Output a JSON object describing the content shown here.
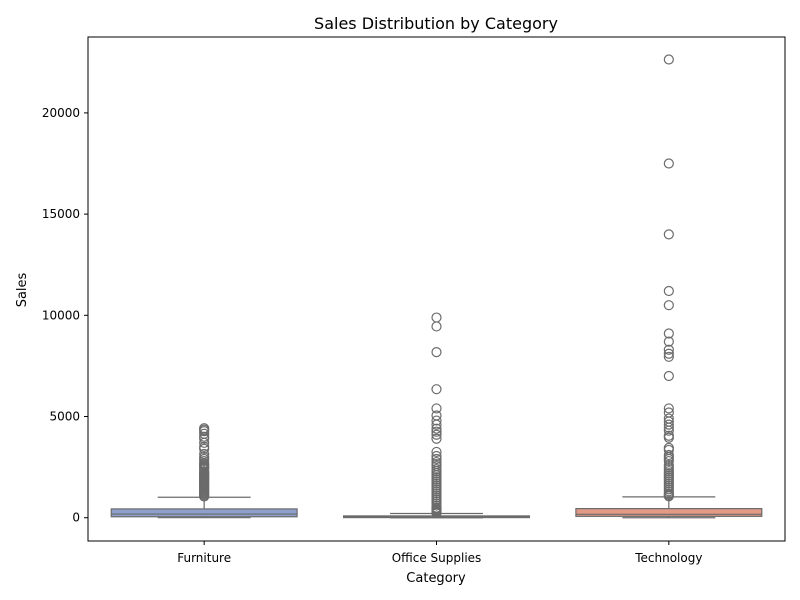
{
  "chart_data": {
    "type": "box",
    "title": "Sales Distribution by Category",
    "xlabel": "Category",
    "ylabel": "Sales",
    "ylim": [
      -1150,
      23750
    ],
    "yticks": [
      0,
      5000,
      10000,
      15000,
      20000
    ],
    "ytick_labels": [
      "0",
      "5000",
      "10000",
      "15000",
      "20000"
    ],
    "grid": false,
    "categories": [
      "Furniture",
      "Office Supplies",
      "Technology"
    ],
    "boxes": [
      {
        "category": "Furniture",
        "color": "#8da0cb",
        "min": 1,
        "q1": 47,
        "median": 182,
        "q3": 435,
        "whisker_low": 1,
        "whisker_high": 1010,
        "outliers": [
          4420,
          4350,
          4280,
          4150,
          4000,
          3900,
          3700,
          3500,
          3400,
          3150,
          3000,
          2900,
          2800,
          2700,
          2650,
          2600,
          2550,
          2500,
          2450,
          2400,
          2300,
          2250,
          2200,
          2150,
          2100,
          2050,
          2000,
          1950,
          1900,
          1850,
          1800,
          1750,
          1700,
          1650,
          1600,
          1550,
          1500,
          1450,
          1400,
          1350,
          1300,
          1250,
          1200,
          1150,
          1100,
          1050
        ]
      },
      {
        "category": "Office Supplies",
        "color": "#8c8c8c",
        "min": 0,
        "q1": 7,
        "median": 28,
        "q3": 90,
        "whisker_low": 0,
        "whisker_high": 210,
        "outliers": [
          9890,
          9450,
          8180,
          6350,
          5400,
          5050,
          4800,
          4600,
          4400,
          4250,
          4100,
          3900,
          3250,
          3050,
          2900,
          2750,
          2650,
          2550,
          2400,
          2300,
          2200,
          2100,
          2000,
          1900,
          1800,
          1700,
          1600,
          1500,
          1400,
          1300,
          1200,
          1100,
          1000,
          900,
          800,
          700,
          600,
          500,
          450,
          400,
          350,
          300,
          260,
          230
        ]
      },
      {
        "category": "Technology",
        "color": "#e29a86",
        "min": 0,
        "q1": 68,
        "median": 168,
        "q3": 450,
        "whisker_low": 0,
        "whisker_high": 1030,
        "outliers": [
          22640,
          17500,
          14000,
          11200,
          10500,
          9100,
          8700,
          8300,
          8100,
          7950,
          7000,
          5400,
          5200,
          4900,
          4750,
          4600,
          4450,
          4300,
          4050,
          3950,
          3450,
          3350,
          3100,
          3000,
          2900,
          2800,
          2600,
          2500,
          2400,
          2300,
          2200,
          2100,
          2000,
          1900,
          1800,
          1700,
          1600,
          1500,
          1400,
          1300,
          1200,
          1150,
          1100,
          1060
        ]
      }
    ]
  }
}
